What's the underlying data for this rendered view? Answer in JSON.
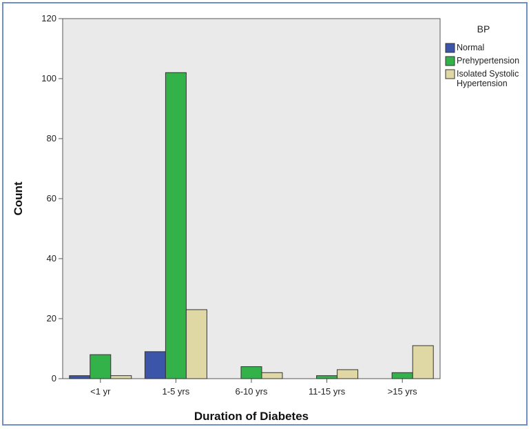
{
  "chart_data": {
    "type": "bar",
    "xlabel": "Duration of Diabetes",
    "ylabel": "Count",
    "categories": [
      "<1 yr",
      "1-5 yrs",
      "6-10 yrs",
      "11-15 yrs",
      ">15 yrs"
    ],
    "ylim": [
      0,
      120
    ],
    "yticks": [
      0,
      20,
      40,
      60,
      80,
      100,
      120
    ],
    "legend": {
      "title": "BP",
      "position": "right"
    },
    "series": [
      {
        "name": "Normal",
        "color": "#3b55a8",
        "values": [
          1,
          9,
          0,
          0,
          0
        ]
      },
      {
        "name": "Prehypertension",
        "color": "#33b24a",
        "values": [
          8,
          102,
          4,
          1,
          2
        ]
      },
      {
        "name": "Isolated Systolic Hypertension",
        "color": "#e0d8a4",
        "values": [
          1,
          23,
          2,
          3,
          11
        ]
      }
    ],
    "legend_lines": [
      [
        "Normal"
      ],
      [
        "Prehypertension"
      ],
      [
        "Isolated Systolic",
        "Hypertension"
      ]
    ],
    "plot_background": "#eaeaea",
    "grid": false
  }
}
